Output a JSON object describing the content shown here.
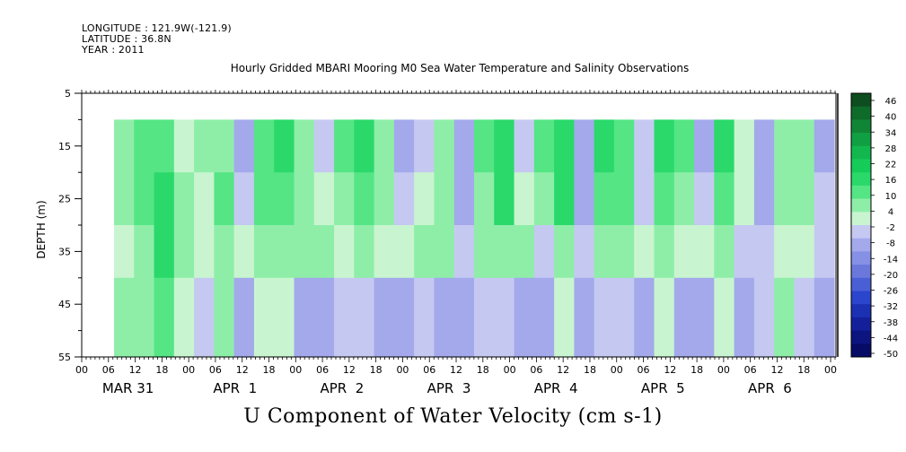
{
  "header": {
    "longitude": "LONGITUDE : 121.9W(-121.9)",
    "latitude": "LATITUDE : 36.8N",
    "year": "YEAR : 2011"
  },
  "chart_data": {
    "type": "heatmap",
    "title": "Hourly Gridded MBARI Mooring M0 Sea Water Temperature and Salinity Observations",
    "bottom_title": "U Component of Water Velocity (cm s-1)",
    "xlabel": "",
    "ylabel": "DEPTH (m)",
    "ylim": [
      55,
      5
    ],
    "y_ticks": [
      5,
      15,
      25,
      35,
      45,
      55
    ],
    "data_depth_range": [
      10,
      55
    ],
    "hour_tick_labels": [
      "00",
      "06",
      "12",
      "18",
      "00",
      "06",
      "12",
      "18",
      "00",
      "06",
      "12",
      "18",
      "00",
      "06",
      "12",
      "18",
      "00",
      "06",
      "12",
      "18",
      "00",
      "06",
      "12",
      "18",
      "00",
      "06",
      "12",
      "18",
      "00"
    ],
    "day_labels": [
      "MAR 31",
      "APR  1",
      "APR  2",
      "APR  3",
      "APR  4",
      "APR  5",
      "APR  6"
    ],
    "colorbar": {
      "labels": [
        "46",
        "40",
        "34",
        "28",
        "22",
        "16",
        "10",
        "4",
        "-2",
        "-8",
        "-14",
        "-20",
        "-26",
        "-32",
        "-38",
        "-44",
        "-50"
      ],
      "colors": [
        "#0d4d1f",
        "#0f6b2a",
        "#118536",
        "#10a043",
        "#12b84e",
        "#15cc58",
        "#2ad96a",
        "#55e585",
        "#8eeea8",
        "#c8f5cf",
        "#c5c9f1",
        "#a3a9eb",
        "#8690e4",
        "#6a78dc",
        "#4a5fd6",
        "#2b45cc",
        "#1c30b4",
        "#14209a",
        "#0c1480",
        "#060b66"
      ]
    },
    "series": [
      {
        "depth_band": "10-20",
        "values": [
          8,
          14,
          12,
          2,
          6,
          10,
          -6,
          14,
          16,
          10,
          -4,
          12,
          18,
          10,
          -8,
          -4,
          10,
          -10,
          14,
          18,
          -2,
          12,
          20,
          -8,
          16,
          14,
          -4,
          18,
          12,
          -6,
          16,
          4,
          -8,
          8,
          10,
          -6
        ]
      },
      {
        "depth_band": "20-30",
        "values": [
          6,
          12,
          16,
          6,
          4,
          12,
          -2,
          12,
          14,
          8,
          2,
          10,
          14,
          6,
          -4,
          2,
          8,
          -8,
          10,
          16,
          2,
          8,
          16,
          -6,
          12,
          12,
          -2,
          14,
          8,
          -4,
          12,
          2,
          -6,
          6,
          6,
          -4
        ]
      },
      {
        "depth_band": "30-40",
        "values": [
          4,
          10,
          18,
          10,
          2,
          10,
          4,
          8,
          10,
          6,
          6,
          4,
          8,
          2,
          2,
          6,
          6,
          -4,
          6,
          10,
          8,
          -2,
          10,
          -4,
          8,
          8,
          2,
          8,
          4,
          2,
          6,
          -2,
          -4,
          4,
          2,
          -2
        ]
      },
      {
        "depth_band": "40-55",
        "values": [
          6,
          8,
          14,
          4,
          -4,
          8,
          -6,
          4,
          2,
          -6,
          -8,
          -4,
          -2,
          -6,
          -10,
          -4,
          -6,
          -8,
          -4,
          -2,
          -6,
          -10,
          2,
          -8,
          -2,
          -4,
          -10,
          4,
          -8,
          -6,
          2,
          -8,
          -4,
          8,
          -2,
          -6
        ]
      }
    ]
  }
}
